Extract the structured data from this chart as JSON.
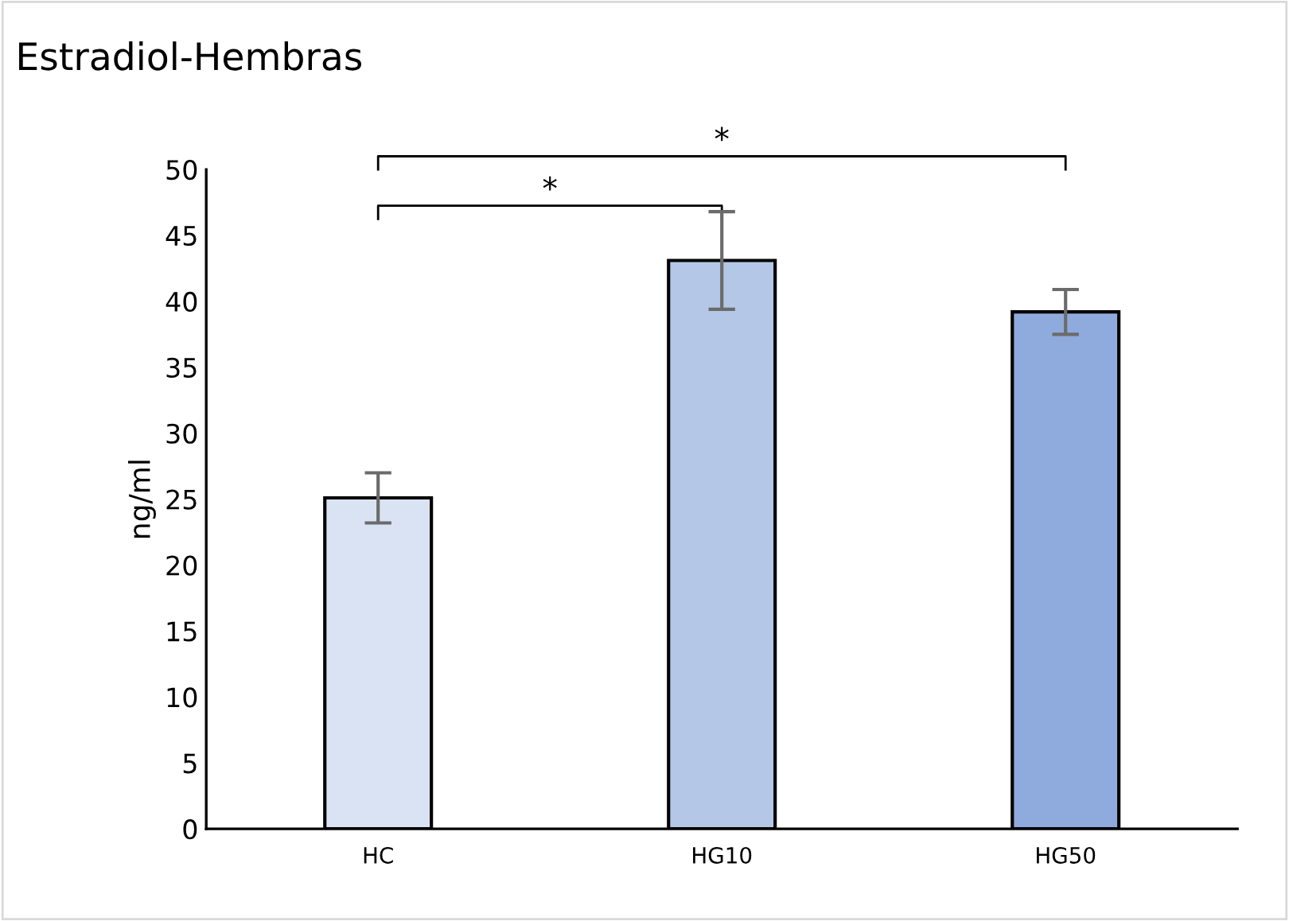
{
  "chart_data": {
    "type": "bar",
    "title": "Estradiol-Hembras",
    "ylabel": "ng/ml",
    "categories": [
      "HC",
      "HG10",
      "HG50"
    ],
    "values": [
      25.1,
      43.1,
      39.2
    ],
    "errors": [
      1.9,
      3.7,
      1.7
    ],
    "colors": [
      "#dae3f3",
      "#b4c7e7",
      "#8faadc"
    ],
    "ylim": [
      0,
      50
    ],
    "yticks": [
      0,
      5,
      10,
      15,
      20,
      25,
      30,
      35,
      40,
      45,
      50
    ],
    "annotations": [
      "*",
      "*"
    ],
    "grid": false,
    "legend": false
  }
}
